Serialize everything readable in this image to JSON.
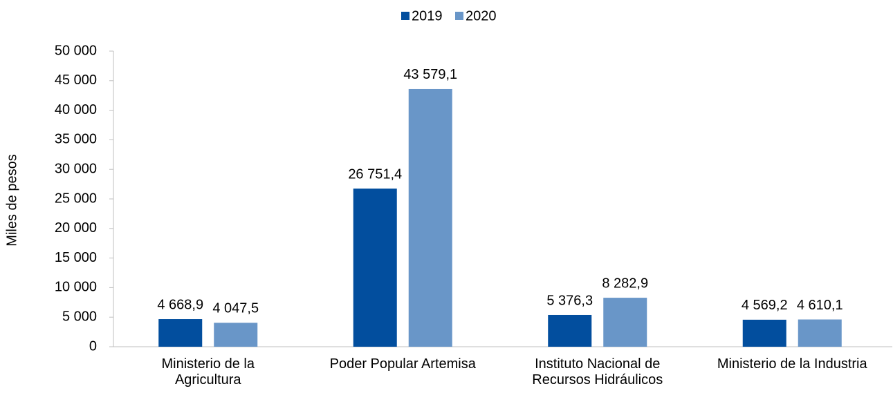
{
  "chart_data": {
    "type": "bar",
    "y_label": "Miles de pesos",
    "categories": [
      "Ministerio de la Agricultura",
      "Poder Popular Artemisa",
      "Instituto Nacional de Recursos Hidráulicos",
      "Ministerio de la Industria"
    ],
    "series": [
      {
        "name": "2019",
        "color": "#024e9e",
        "values": [
          4668.9,
          26751.4,
          5376.3,
          4569.2
        ],
        "value_labels": [
          "4 668,9",
          "26 751,4",
          "5 376,3",
          "4 569,2"
        ]
      },
      {
        "name": "2020",
        "color": "#6996c8",
        "values": [
          4047.5,
          43579.1,
          8282.9,
          4610.1
        ],
        "value_labels": [
          "4 047,5",
          "43 579,1",
          "8 282,9",
          "4 610,1"
        ]
      }
    ],
    "ylim": [
      0,
      50000
    ],
    "yticks": [
      0,
      {
        "value": 5000,
        "label": "5 000"
      },
      {
        "value": 10000,
        "label": "10 000"
      },
      {
        "value": 15000,
        "label": "15 000"
      },
      {
        "value": 20000,
        "label": "20 000"
      },
      {
        "value": 25000,
        "label": "25 000"
      },
      {
        "value": 30000,
        "label": "30 000"
      },
      {
        "value": 35000,
        "label": "35 000"
      },
      {
        "value": 40000,
        "label": "40 000"
      },
      {
        "value": 45000,
        "label": "45 000"
      },
      {
        "value": 50000,
        "label": "50 000"
      }
    ],
    "legend": "top",
    "grid": false
  }
}
